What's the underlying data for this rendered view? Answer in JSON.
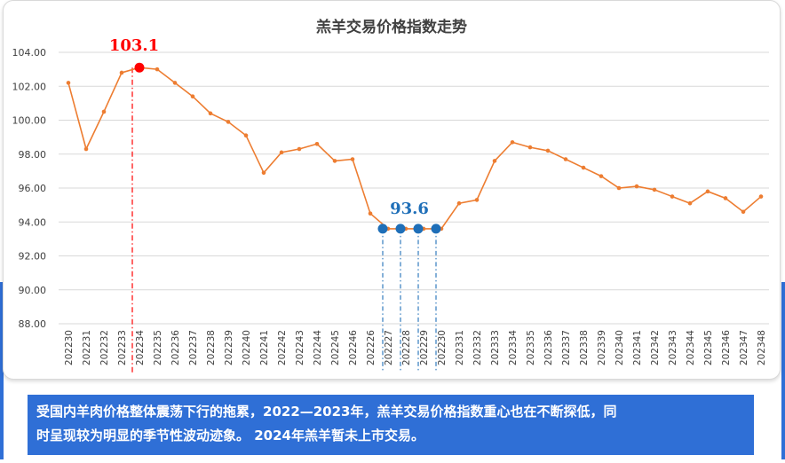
{
  "chart_data": {
    "type": "line",
    "title": "羔羊交易价格指数走势",
    "xlabel": "",
    "ylabel": "",
    "ylim": [
      88,
      104
    ],
    "yticks": [
      "88.00",
      "90.00",
      "92.00",
      "94.00",
      "96.00",
      "98.00",
      "100.00",
      "102.00",
      "104.00"
    ],
    "grid": true,
    "legend": "none",
    "categories": [
      "202230",
      "202231",
      "202232",
      "202233",
      "202234",
      "202235",
      "202236",
      "202237",
      "202238",
      "202239",
      "202240",
      "202241",
      "202242",
      "202243",
      "202244",
      "202245",
      "202246",
      "202226",
      "202227",
      "202228",
      "202229",
      "202230",
      "202331",
      "202332",
      "202333",
      "202334",
      "202335",
      "202336",
      "202337",
      "202338",
      "202339",
      "202340",
      "202341",
      "202342",
      "202343",
      "202344",
      "202345",
      "202346",
      "202347",
      "202348"
    ],
    "series": [
      {
        "values": [
          102.2,
          98.3,
          100.5,
          102.8,
          103.1,
          103.0,
          102.2,
          101.4,
          100.4,
          99.9,
          99.1,
          96.9,
          98.1,
          98.3,
          98.6,
          97.6,
          97.7,
          94.5,
          93.6,
          93.6,
          93.6,
          93.6,
          95.1,
          95.3,
          97.6,
          98.7,
          98.4,
          98.2,
          97.7,
          97.2,
          96.7,
          96.0,
          96.1,
          95.9,
          95.5,
          95.1,
          95.8,
          95.4,
          94.6,
          95.5
        ]
      }
    ],
    "colors": {
      "line": "#ed7d31",
      "peak": "#ff0000",
      "trough": "#1f6fb8",
      "grid": "#d9d9d9"
    },
    "annotations": {
      "peak_label": "103.1",
      "peak_index": 4,
      "trough_label": "93.6",
      "trough_indices": [
        18,
        19,
        20,
        21
      ]
    }
  },
  "caption": {
    "line1": "受国内羊肉价格整体震荡下行的拖累，2022—2023年，羔羊交易价格指数重心也在不断探低，同",
    "line2": "时呈现较为明显的季节性波动迹象。 2024年羔羊暂未上市交易。"
  }
}
